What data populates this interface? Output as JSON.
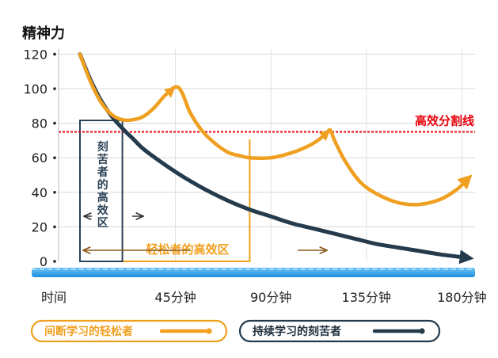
{
  "chart_data": {
    "type": "line",
    "ylabel": "精神力",
    "yticks": [
      0,
      20,
      40,
      60,
      80,
      100,
      120
    ],
    "ylim": [
      0,
      120
    ],
    "xticks": [
      {
        "t": 0,
        "label": "时间"
      },
      {
        "t": 45,
        "label": "45分钟"
      },
      {
        "t": 90,
        "label": "90分钟"
      },
      {
        "t": 135,
        "label": "135分钟"
      },
      {
        "t": 180,
        "label": "180分钟"
      }
    ],
    "threshold": {
      "value": 75,
      "label": "高效分割线",
      "color": "#e8000b"
    },
    "zones": [
      {
        "name": "刻苦者的高效区",
        "chars": [
          "刻",
          "苦",
          "者",
          "的",
          "高",
          "效",
          "区"
        ],
        "t_start": 0,
        "t_end": 20,
        "color": "#2b4256"
      },
      {
        "name": "轻松者的高效区",
        "t_start": 20,
        "t_end": 80,
        "color": "#f0a020"
      }
    ],
    "series": [
      {
        "name": "间断学习的轻松者",
        "color": "#f0a020",
        "points": [
          [
            0,
            120
          ],
          [
            5,
            104
          ],
          [
            10,
            92
          ],
          [
            15,
            85
          ],
          [
            20,
            82
          ],
          [
            25,
            82
          ],
          [
            30,
            84
          ],
          [
            35,
            89
          ],
          [
            40,
            96
          ],
          [
            45,
            101
          ],
          [
            48,
            98
          ],
          [
            52,
            86
          ],
          [
            58,
            75
          ],
          [
            64,
            68
          ],
          [
            70,
            63
          ],
          [
            76,
            61
          ],
          [
            80,
            60
          ],
          [
            90,
            60
          ],
          [
            100,
            63
          ],
          [
            108,
            67
          ],
          [
            112,
            70
          ],
          [
            116,
            74
          ],
          [
            118,
            76
          ],
          [
            120,
            70
          ],
          [
            125,
            58
          ],
          [
            132,
            46
          ],
          [
            140,
            39
          ],
          [
            150,
            34
          ],
          [
            160,
            33
          ],
          [
            170,
            36
          ],
          [
            178,
            42
          ],
          [
            183,
            48
          ]
        ]
      },
      {
        "name": "持续学习的刻苦者",
        "color": "#243b4d",
        "points": [
          [
            0,
            120
          ],
          [
            5,
            105
          ],
          [
            10,
            93
          ],
          [
            15,
            84
          ],
          [
            20,
            77
          ],
          [
            25,
            71
          ],
          [
            30,
            65
          ],
          [
            40,
            56
          ],
          [
            50,
            48
          ],
          [
            60,
            41
          ],
          [
            70,
            35
          ],
          [
            80,
            30
          ],
          [
            90,
            26
          ],
          [
            100,
            22
          ],
          [
            110,
            19
          ],
          [
            120,
            16
          ],
          [
            130,
            13
          ],
          [
            140,
            10
          ],
          [
            150,
            8
          ],
          [
            160,
            6
          ],
          [
            170,
            4
          ],
          [
            183,
            2
          ]
        ]
      }
    ]
  }
}
